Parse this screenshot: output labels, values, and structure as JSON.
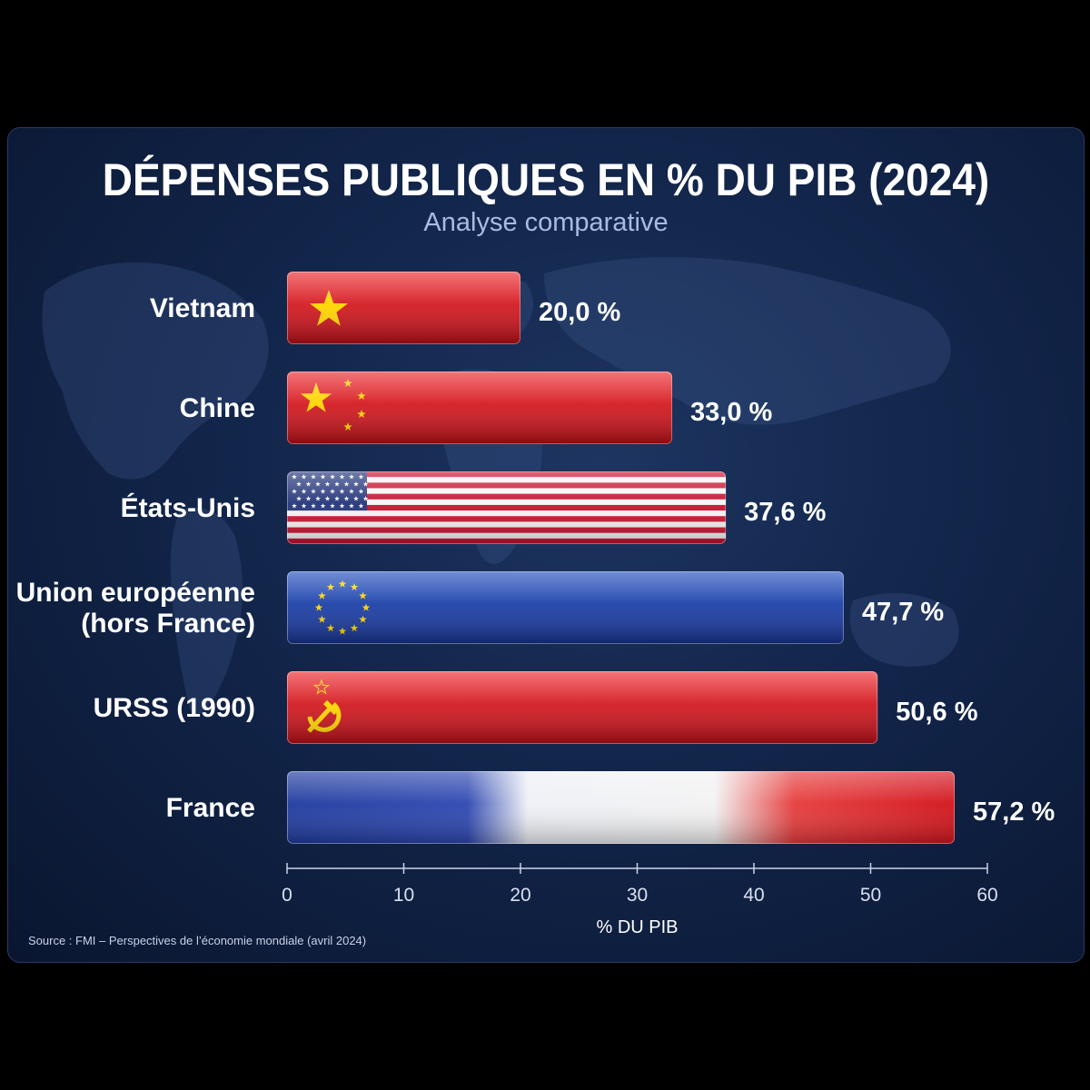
{
  "chart_data": {
    "type": "bar",
    "orientation": "horizontal",
    "title": "DÉPENSES PUBLIQUES EN % DU PIB (2024)",
    "subtitle": "Analyse comparative",
    "categories": [
      "Vietnam",
      "Chine",
      "États-Unis",
      "Union européenne (hors France)",
      "URSS (1990)",
      "France"
    ],
    "category_lines": [
      [
        "Vietnam"
      ],
      [
        "Chine"
      ],
      [
        "États-Unis"
      ],
      [
        "Union européenne",
        "(hors France)"
      ],
      [
        "URSS (1990)"
      ],
      [
        "France"
      ]
    ],
    "values": [
      20.0,
      33.0,
      37.6,
      47.7,
      50.6,
      57.2
    ],
    "value_labels": [
      "20,0 %",
      "33,0 %",
      "37,6 %",
      "47,7 %",
      "50,6 %",
      "57,2 %"
    ],
    "bar_styles": [
      "vietnam-flag",
      "china-flag",
      "usa-flag",
      "eu-flag",
      "ussr-flag",
      "france-flag"
    ],
    "xlabel": "% DU PIB",
    "ylabel": "",
    "xlim": [
      0,
      60
    ],
    "xticks": [
      0,
      10,
      20,
      30,
      40,
      50,
      60
    ],
    "grid": false,
    "colors": {
      "red": "#d0121b",
      "blue": "#1a3ea8",
      "gold": "#ffd500",
      "white": "#f4f4f4"
    }
  },
  "source": "Source : FMI – Perspectives de l’économie mondiale (avril 2024)"
}
